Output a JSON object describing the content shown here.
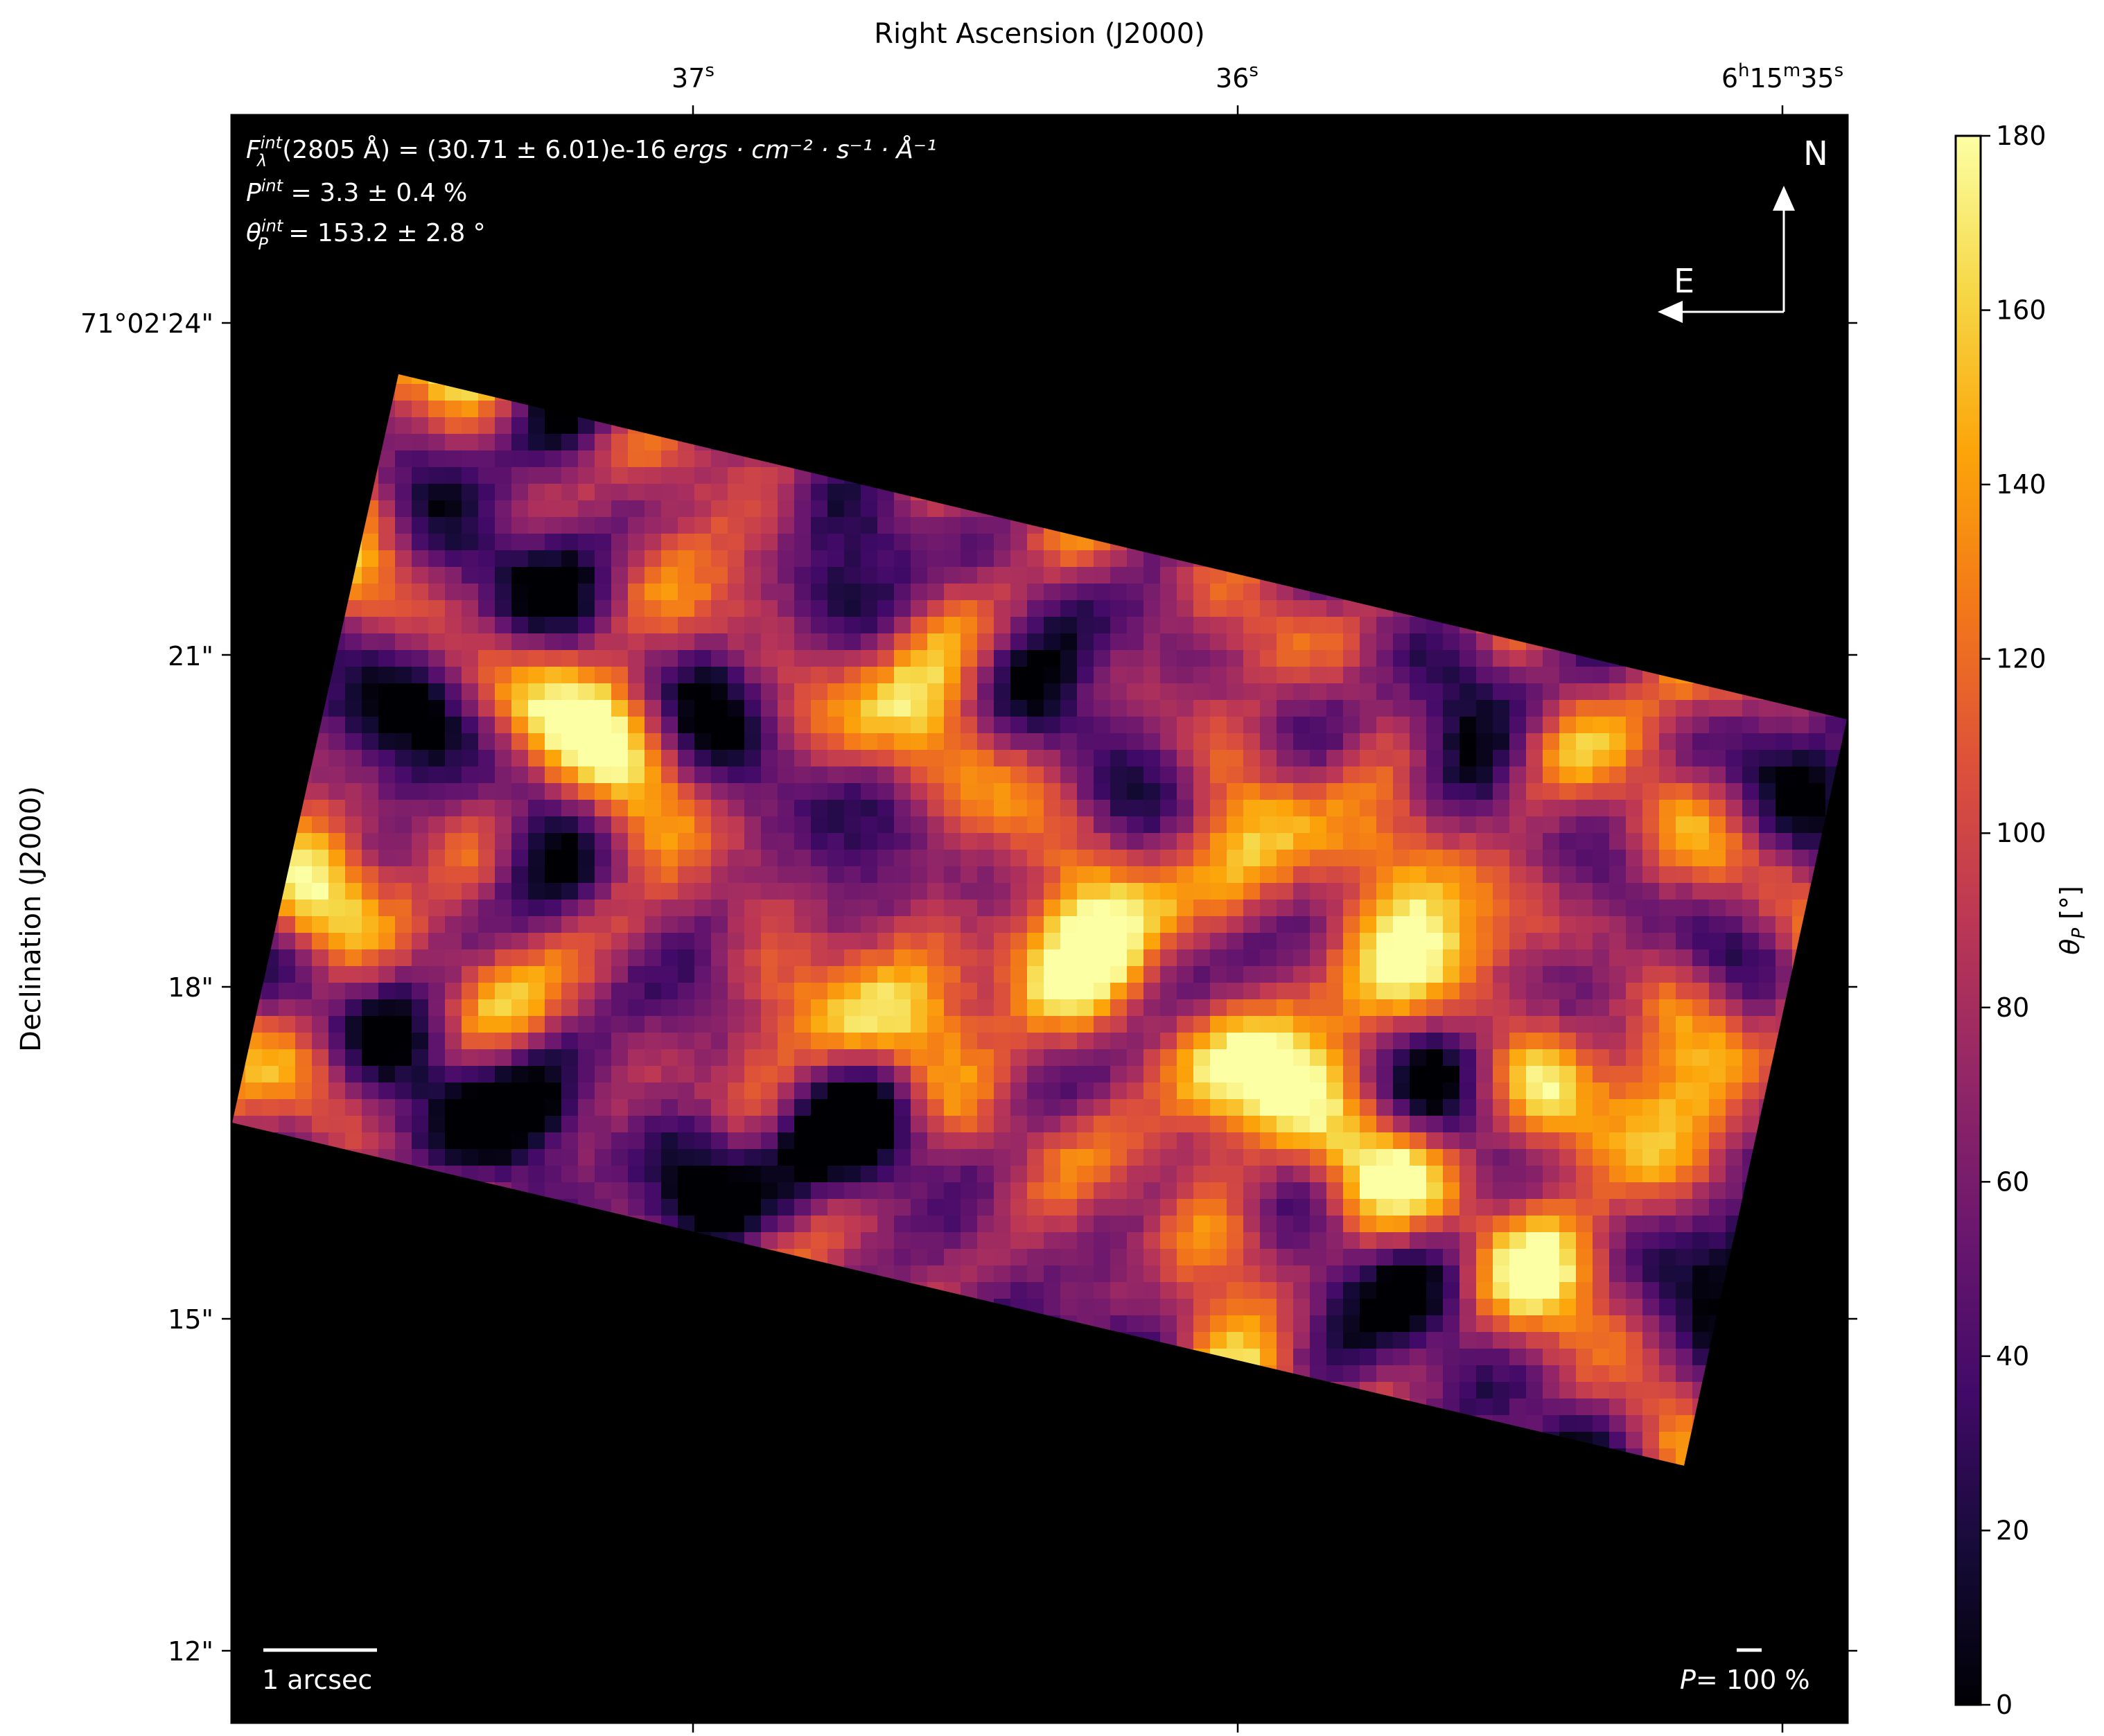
{
  "chart_data": {
    "type": "heatmap",
    "title": "",
    "xlabel": "Right Ascension (J2000)",
    "ylabel": "Declination (J2000)",
    "x_ticks": [
      {
        "label": "37s",
        "main": "37",
        "sup": "s",
        "value": 37
      },
      {
        "label": "36s",
        "main": "36",
        "sup": "s",
        "value": 36
      },
      {
        "label": "6h15m35s",
        "parts": [
          {
            "t": "6"
          },
          {
            "t": "h",
            "sup": true
          },
          {
            "t": "15"
          },
          {
            "t": "m",
            "sup": true
          },
          {
            "t": "35"
          },
          {
            "t": "s",
            "sup": true
          }
        ],
        "value": 35
      }
    ],
    "y_ticks": [
      {
        "label": "71°02'24\"",
        "value": 24
      },
      {
        "label": "21\"",
        "value": 21
      },
      {
        "label": "18\"",
        "value": 18
      },
      {
        "label": "15\"",
        "value": 15
      },
      {
        "label": "12\"",
        "value": 12
      }
    ],
    "colorbar": {
      "label": "θP [°]",
      "label_main": "θ",
      "label_sub": "P",
      "label_unit": " [°]",
      "range": [
        0,
        180
      ],
      "ticks": [
        0,
        20,
        40,
        60,
        80,
        100,
        120,
        140,
        160,
        180
      ],
      "colormap": "inferno"
    },
    "annotations": {
      "flux": "Fλint(2805 Å) = (30.71 ± 6.01)e-16 ergs·cm⁻²·s⁻¹·Å⁻¹",
      "flux_value": "(2805 Å) = (30.71 ± 6.01)e-16",
      "flux_units": "ergs · cm⁻² · s⁻¹ · Å⁻¹",
      "pol_degree": "Pint = 3.3 ± 0.4 %",
      "pol_degree_value": " = 3.3 ± 0.4 %",
      "pol_angle": "θPint = 153.2 ± 2.8 °",
      "pol_angle_value": " = 153.2 ± 2.8 °",
      "compass_north": "N",
      "compass_east": "E",
      "scale_bar": "1 arcsec",
      "pol_scale": "P= 100 %",
      "pol_scale_value": "= 100 %"
    },
    "colors": {
      "background": "#000000",
      "frame": "#000000",
      "overlay_text": "#ffffff"
    }
  }
}
